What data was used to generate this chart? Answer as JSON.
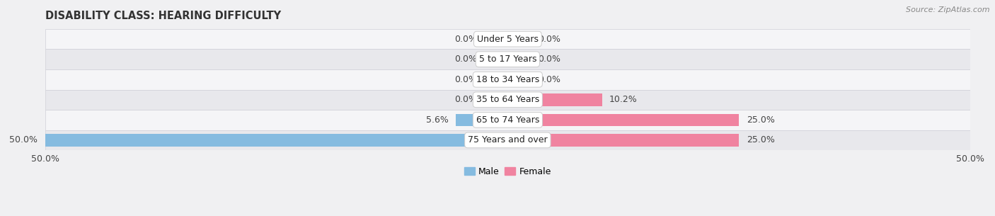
{
  "title": "DISABILITY CLASS: HEARING DIFFICULTY",
  "source": "Source: ZipAtlas.com",
  "categories": [
    "Under 5 Years",
    "5 to 17 Years",
    "18 to 34 Years",
    "35 to 64 Years",
    "65 to 74 Years",
    "75 Years and over"
  ],
  "male_values": [
    0.0,
    0.0,
    0.0,
    0.0,
    5.6,
    50.0
  ],
  "female_values": [
    0.0,
    0.0,
    0.0,
    10.2,
    25.0,
    25.0
  ],
  "male_color": "#85bbe0",
  "female_color": "#f083a0",
  "axis_min": -50.0,
  "axis_max": 50.0,
  "bar_height": 0.62,
  "stub_size": 2.5,
  "background_color": "#f0f0f2",
  "row_color_odd": "#f5f5f7",
  "row_color_even": "#e8e8ec",
  "row_border_color": "#d0d0d8",
  "legend_male_label": "Male",
  "legend_female_label": "Female",
  "label_fontsize": 9,
  "title_fontsize": 10.5,
  "category_fontsize": 9,
  "source_fontsize": 8
}
